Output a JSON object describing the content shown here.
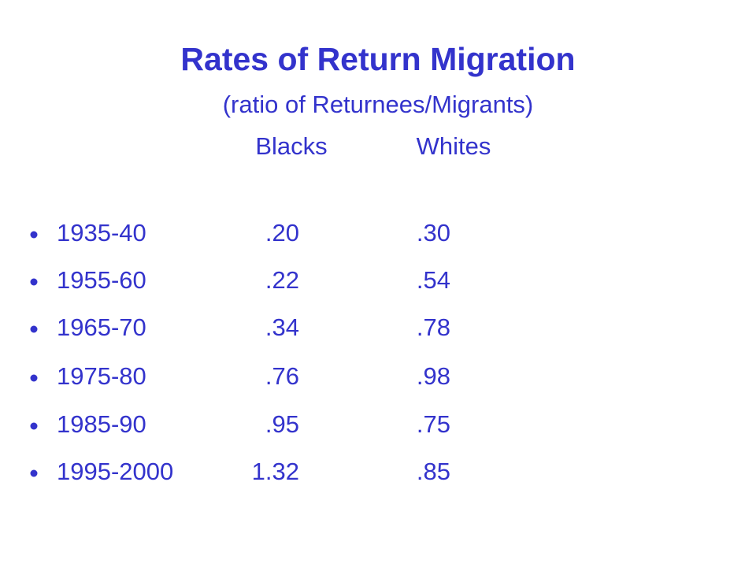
{
  "header": {
    "title": "Rates of Return Migration",
    "subtitle": "(ratio of Returnees/Migrants)",
    "columns": [
      "Blacks",
      "Whites"
    ]
  },
  "table": {
    "rows": [
      [
        "1935-40",
        ".20",
        ".30"
      ],
      [
        "1955-60",
        ".22",
        ".54"
      ],
      [
        "1965-70",
        ".34",
        ".78"
      ],
      [
        "1975-80",
        ".76",
        ".98"
      ],
      [
        "1985-90",
        ".95",
        ".75"
      ],
      [
        "1995-2000",
        "1.32",
        ".85"
      ]
    ]
  }
}
